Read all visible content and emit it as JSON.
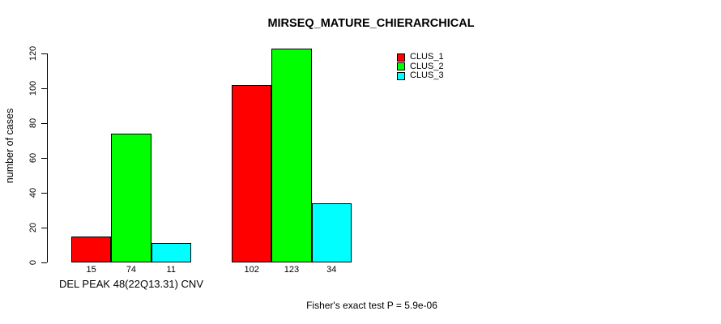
{
  "chart_data": {
    "type": "bar",
    "title": "MIRSEQ_MATURE_CHIERARCHICAL",
    "ylabel": "number of cases",
    "xlabel": "DEL PEAK 48(22Q13.31) CNV",
    "ylim": [
      0,
      120
    ],
    "yticks": [
      0,
      20,
      40,
      60,
      80,
      100,
      120
    ],
    "grid": false,
    "legend_position": "top-right",
    "series": [
      {
        "name": "CLUS_1",
        "color": "#ff0000",
        "values": [
          15,
          102
        ]
      },
      {
        "name": "CLUS_2",
        "color": "#00ff00",
        "values": [
          74,
          123
        ]
      },
      {
        "name": "CLUS_3",
        "color": "#00ffff",
        "values": [
          11,
          34
        ]
      }
    ],
    "bar_value_labels_shown": true,
    "annotation": "Fisher's exact test P = 5.9e-06"
  }
}
